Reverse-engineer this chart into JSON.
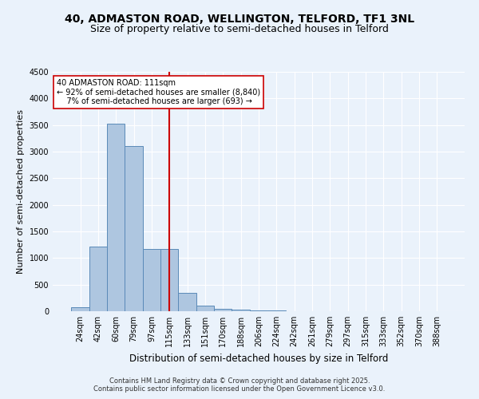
{
  "title1": "40, ADMASTON ROAD, WELLINGTON, TELFORD, TF1 3NL",
  "title2": "Size of property relative to semi-detached houses in Telford",
  "xlabel": "Distribution of semi-detached houses by size in Telford",
  "ylabel": "Number of semi-detached properties",
  "categories": [
    "24sqm",
    "42sqm",
    "60sqm",
    "79sqm",
    "97sqm",
    "115sqm",
    "133sqm",
    "151sqm",
    "170sqm",
    "188sqm",
    "206sqm",
    "224sqm",
    "242sqm",
    "261sqm",
    "279sqm",
    "297sqm",
    "315sqm",
    "333sqm",
    "352sqm",
    "370sqm",
    "388sqm"
  ],
  "values": [
    75,
    1220,
    3520,
    3100,
    1170,
    1170,
    350,
    100,
    50,
    30,
    15,
    8,
    3,
    2,
    1,
    1,
    0,
    0,
    0,
    0,
    0
  ],
  "bar_color": "#aec6e0",
  "bar_edge_color": "#5a8ab8",
  "vline_index": 5,
  "vline_color": "#cc0000",
  "annotation_line1": "40 ADMASTON ROAD: 111sqm",
  "annotation_line2": "← 92% of semi-detached houses are smaller (8,840)",
  "annotation_line3": "    7% of semi-detached houses are larger (693) →",
  "annotation_box_color": "#ffffff",
  "annotation_box_edge": "#cc0000",
  "footer1": "Contains HM Land Registry data © Crown copyright and database right 2025.",
  "footer2": "Contains public sector information licensed under the Open Government Licence v3.0.",
  "ylim": [
    0,
    4500
  ],
  "bg_color": "#eaf2fb",
  "plot_bg_color": "#eaf2fb",
  "title1_fontsize": 10,
  "title2_fontsize": 9,
  "ylabel_fontsize": 8,
  "xlabel_fontsize": 8.5,
  "tick_fontsize": 7,
  "footer_fontsize": 6
}
